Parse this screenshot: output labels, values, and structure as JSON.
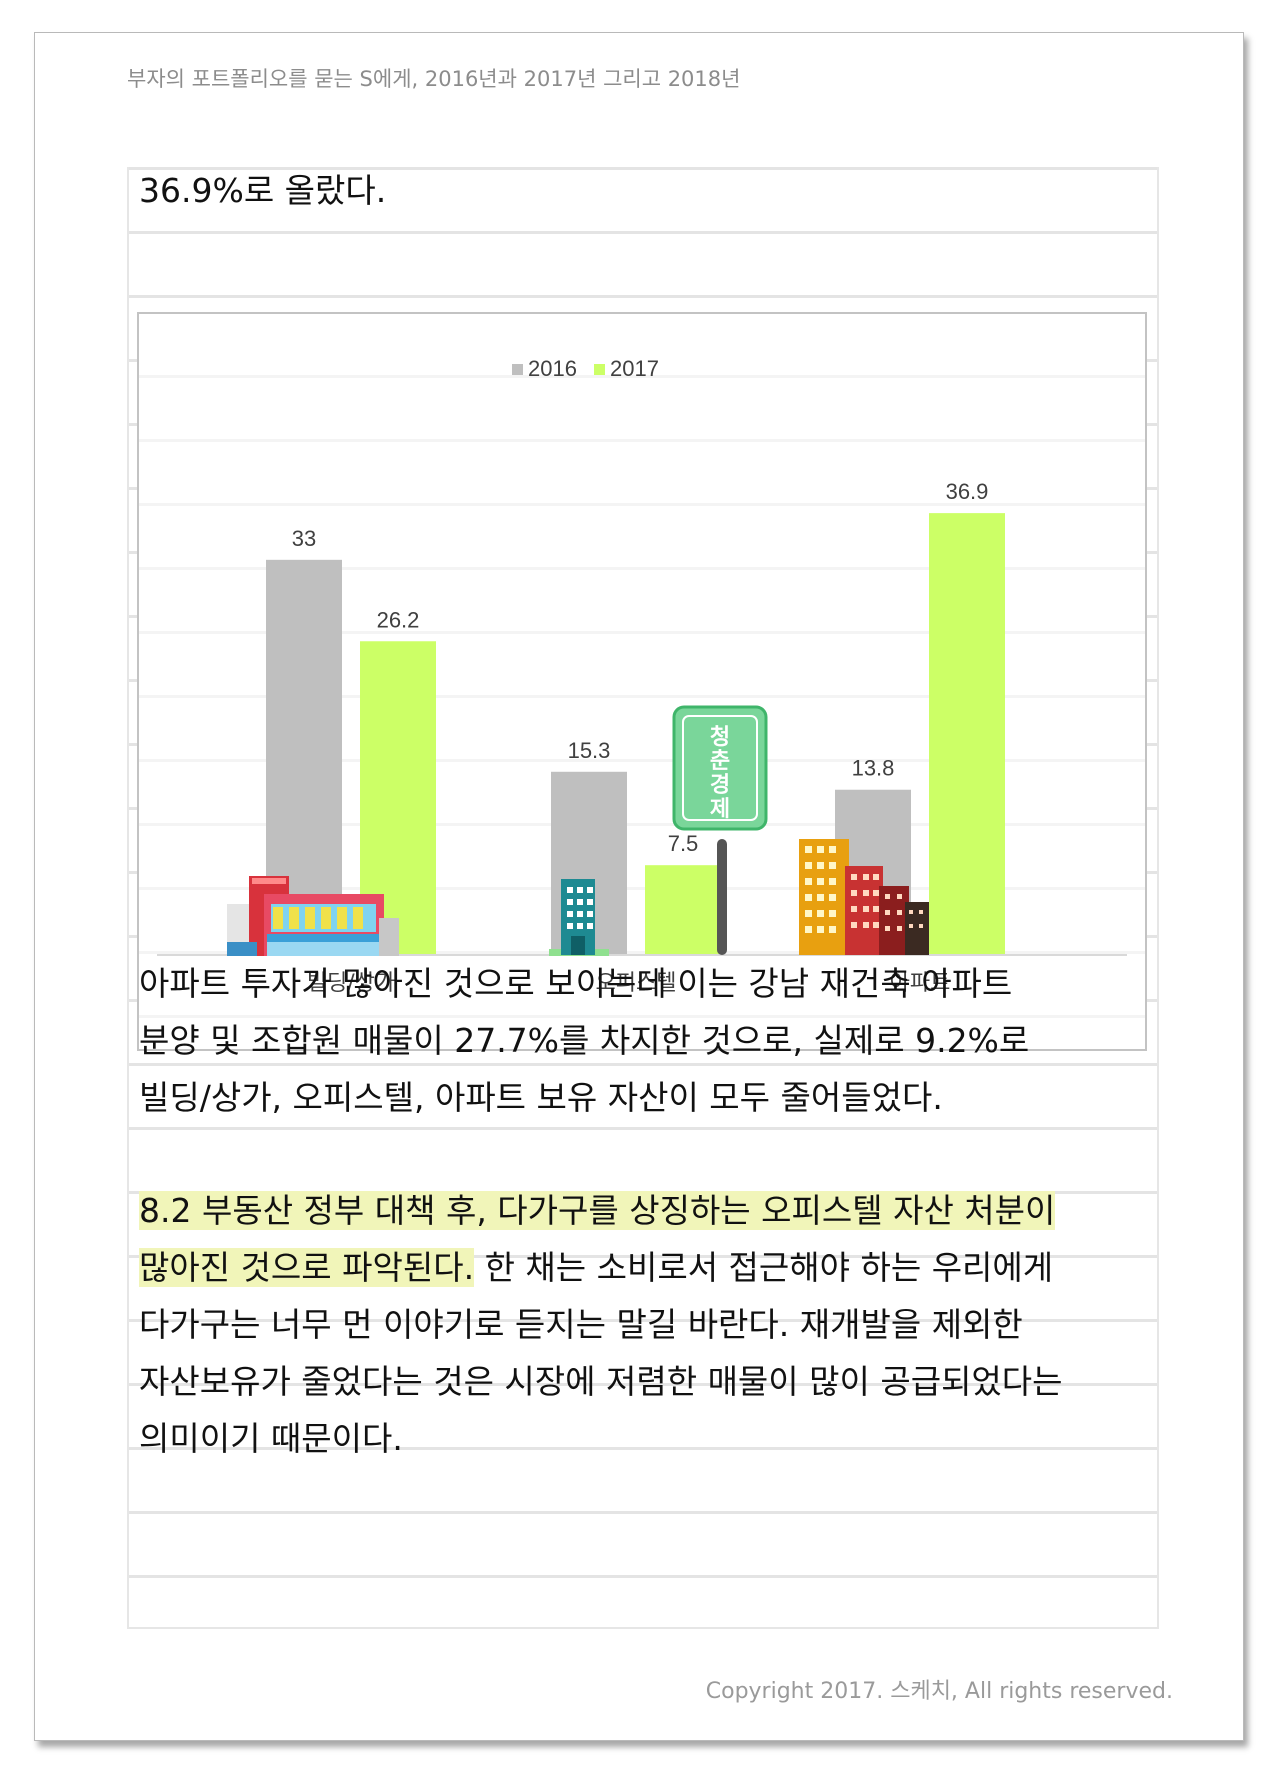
{
  "header": {
    "text": "부자의 포트폴리오를 묻는 S에게, 2016년과 2017년 그리고 2018년"
  },
  "lines": {
    "l1": "36.9%로 올랐다.",
    "l2": "아파트 투자가 많아진 것으로 보이는데 이는 강남 재건축 아파트",
    "l3": "분양 및 조합원 매물이 27.7%를 차지한 것으로, 실제로 9.2%로",
    "l4": "빌딩/상가, 오피스텔, 아파트 보유 자산이 모두 줄어들었다.",
    "l5": "8.2 부동산 정부 대책 후, 다가구를 상징하는 오피스텔 자산 처분이",
    "l6a": "많아진 것으로 파악된다.",
    "l6b": " 한 채는 소비로서 접근해야 하는 우리에게",
    "l7": "다가구는 너무 먼 이야기로 듣지는 말길 바란다. 재개발을 제외한",
    "l8": "자산보유가 줄었다는 것은 시장에 저렴한 매물이 많이 공급되었다는",
    "l9": "의미이기 때문이다."
  },
  "sign": {
    "text": "청춘경제"
  },
  "copyright": "Copyright 2017. 스케치, All rights reserved.",
  "colors": {
    "s2016": "#bfbfbf",
    "s2017": "#ccff66",
    "highlight": "#f1f5b9",
    "sign": "#7ad69a"
  },
  "chart_data": {
    "type": "bar",
    "categories": [
      "빌딩/상가",
      "오피스텔",
      "아파트"
    ],
    "series": [
      {
        "name": "2016",
        "values": [
          33,
          15.3,
          13.8
        ],
        "labels": [
          "33",
          "15.3",
          "13.8"
        ]
      },
      {
        "name": "2017",
        "values": [
          26.2,
          7.5,
          36.9
        ],
        "labels": [
          "26.2",
          "7.5",
          "36.9"
        ]
      }
    ],
    "ylim": [
      0,
      40
    ],
    "legend": "top-center",
    "grid": false
  }
}
